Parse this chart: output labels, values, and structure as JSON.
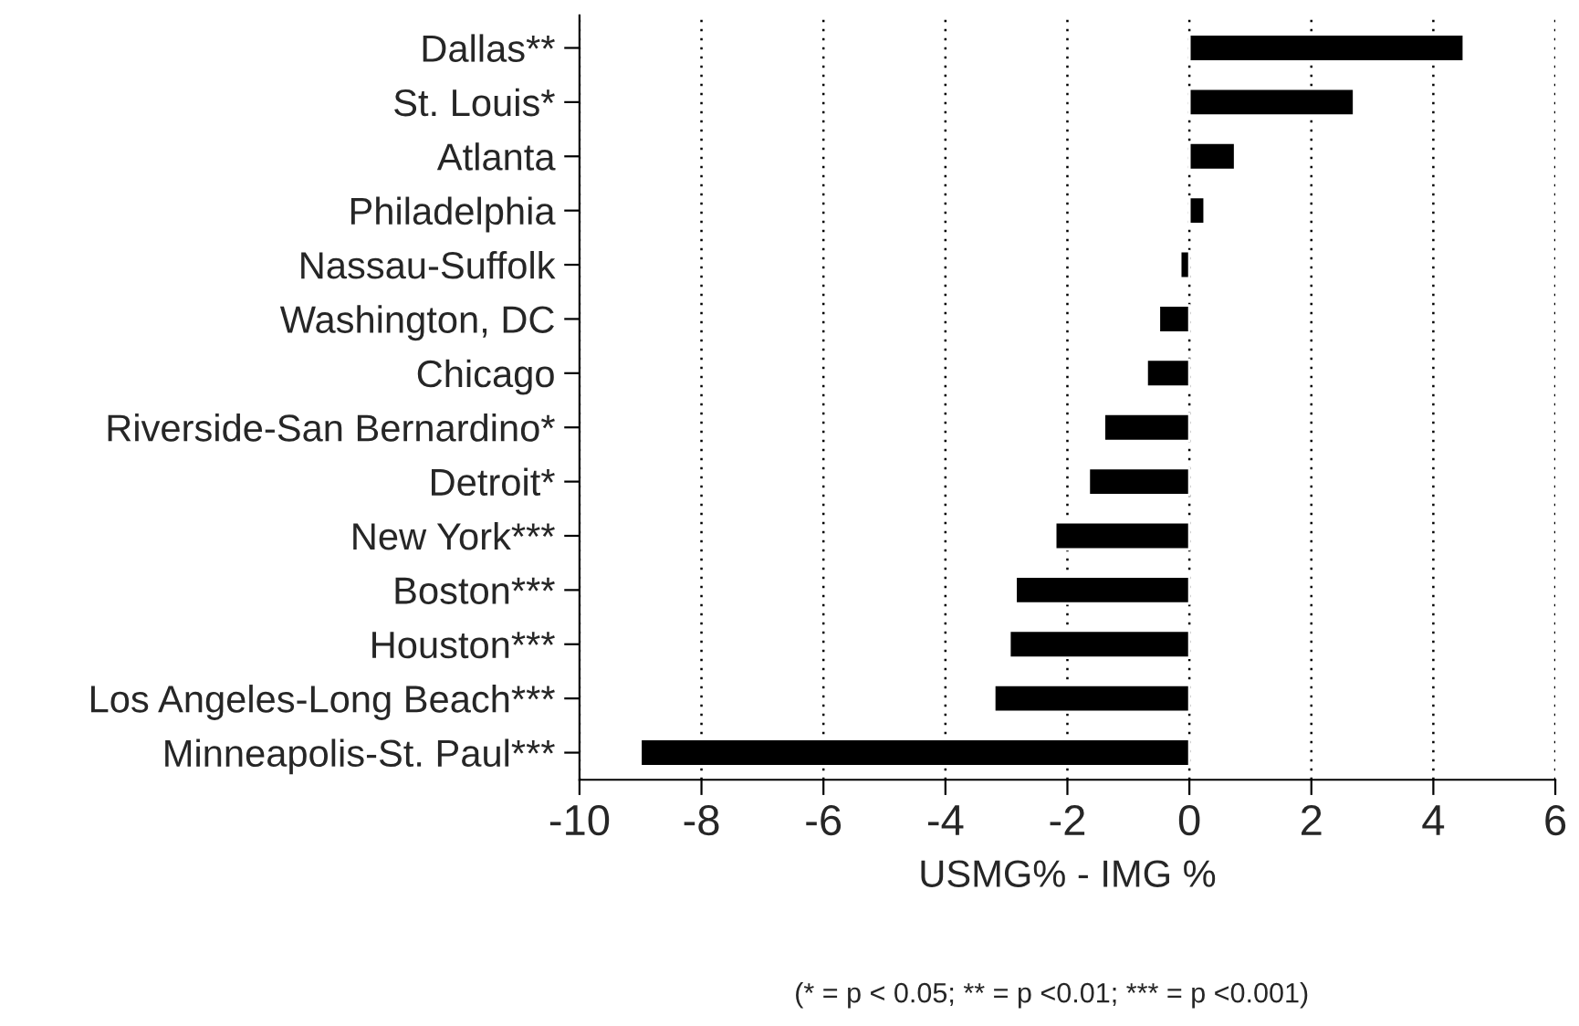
{
  "chart_data": {
    "type": "bar",
    "orientation": "horizontal",
    "categories": [
      "Dallas**",
      "St. Louis*",
      "Atlanta",
      "Philadelphia",
      "Nassau-Suffolk",
      "Washington, DC",
      "Chicago",
      "Riverside-San Bernardino*",
      "Detroit*",
      "New York***",
      "Boston***",
      "Houston***",
      "Los Angeles-Long Beach***",
      "Minneapolis-St. Paul***"
    ],
    "values": [
      4.5,
      2.7,
      0.75,
      0.25,
      -0.15,
      -0.5,
      -0.7,
      -1.4,
      -1.65,
      -2.2,
      -2.85,
      -2.95,
      -3.2,
      -9.0
    ],
    "color": "#000000",
    "xlim": [
      -10,
      6
    ],
    "xticks": [
      -10,
      -8,
      -6,
      -4,
      -2,
      0,
      2,
      4,
      6
    ],
    "xlabel": "USMG% - IMG %",
    "annotations": [
      "(* = p < 0.05; ** = p <0.01; *** = p <0.001)"
    ],
    "grid": "x"
  }
}
